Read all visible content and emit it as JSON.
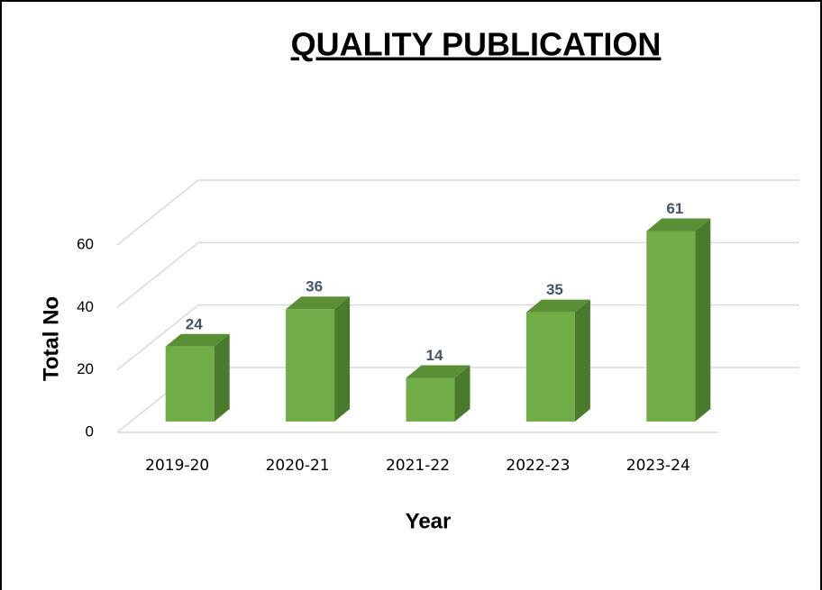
{
  "chart_data": {
    "type": "bar3d",
    "title": "QUALITY PUBLICATION",
    "categories": [
      "2019-20",
      "2020-21",
      "2021-22",
      "2022-23",
      "2023-24"
    ],
    "values": [
      24,
      36,
      14,
      35,
      61
    ],
    "color": "#70ad47",
    "ylim": [
      0,
      60
    ],
    "yticks": [
      0,
      20,
      40,
      60
    ],
    "grid": true,
    "ylabel": "Total No",
    "xlabel": "Year"
  }
}
